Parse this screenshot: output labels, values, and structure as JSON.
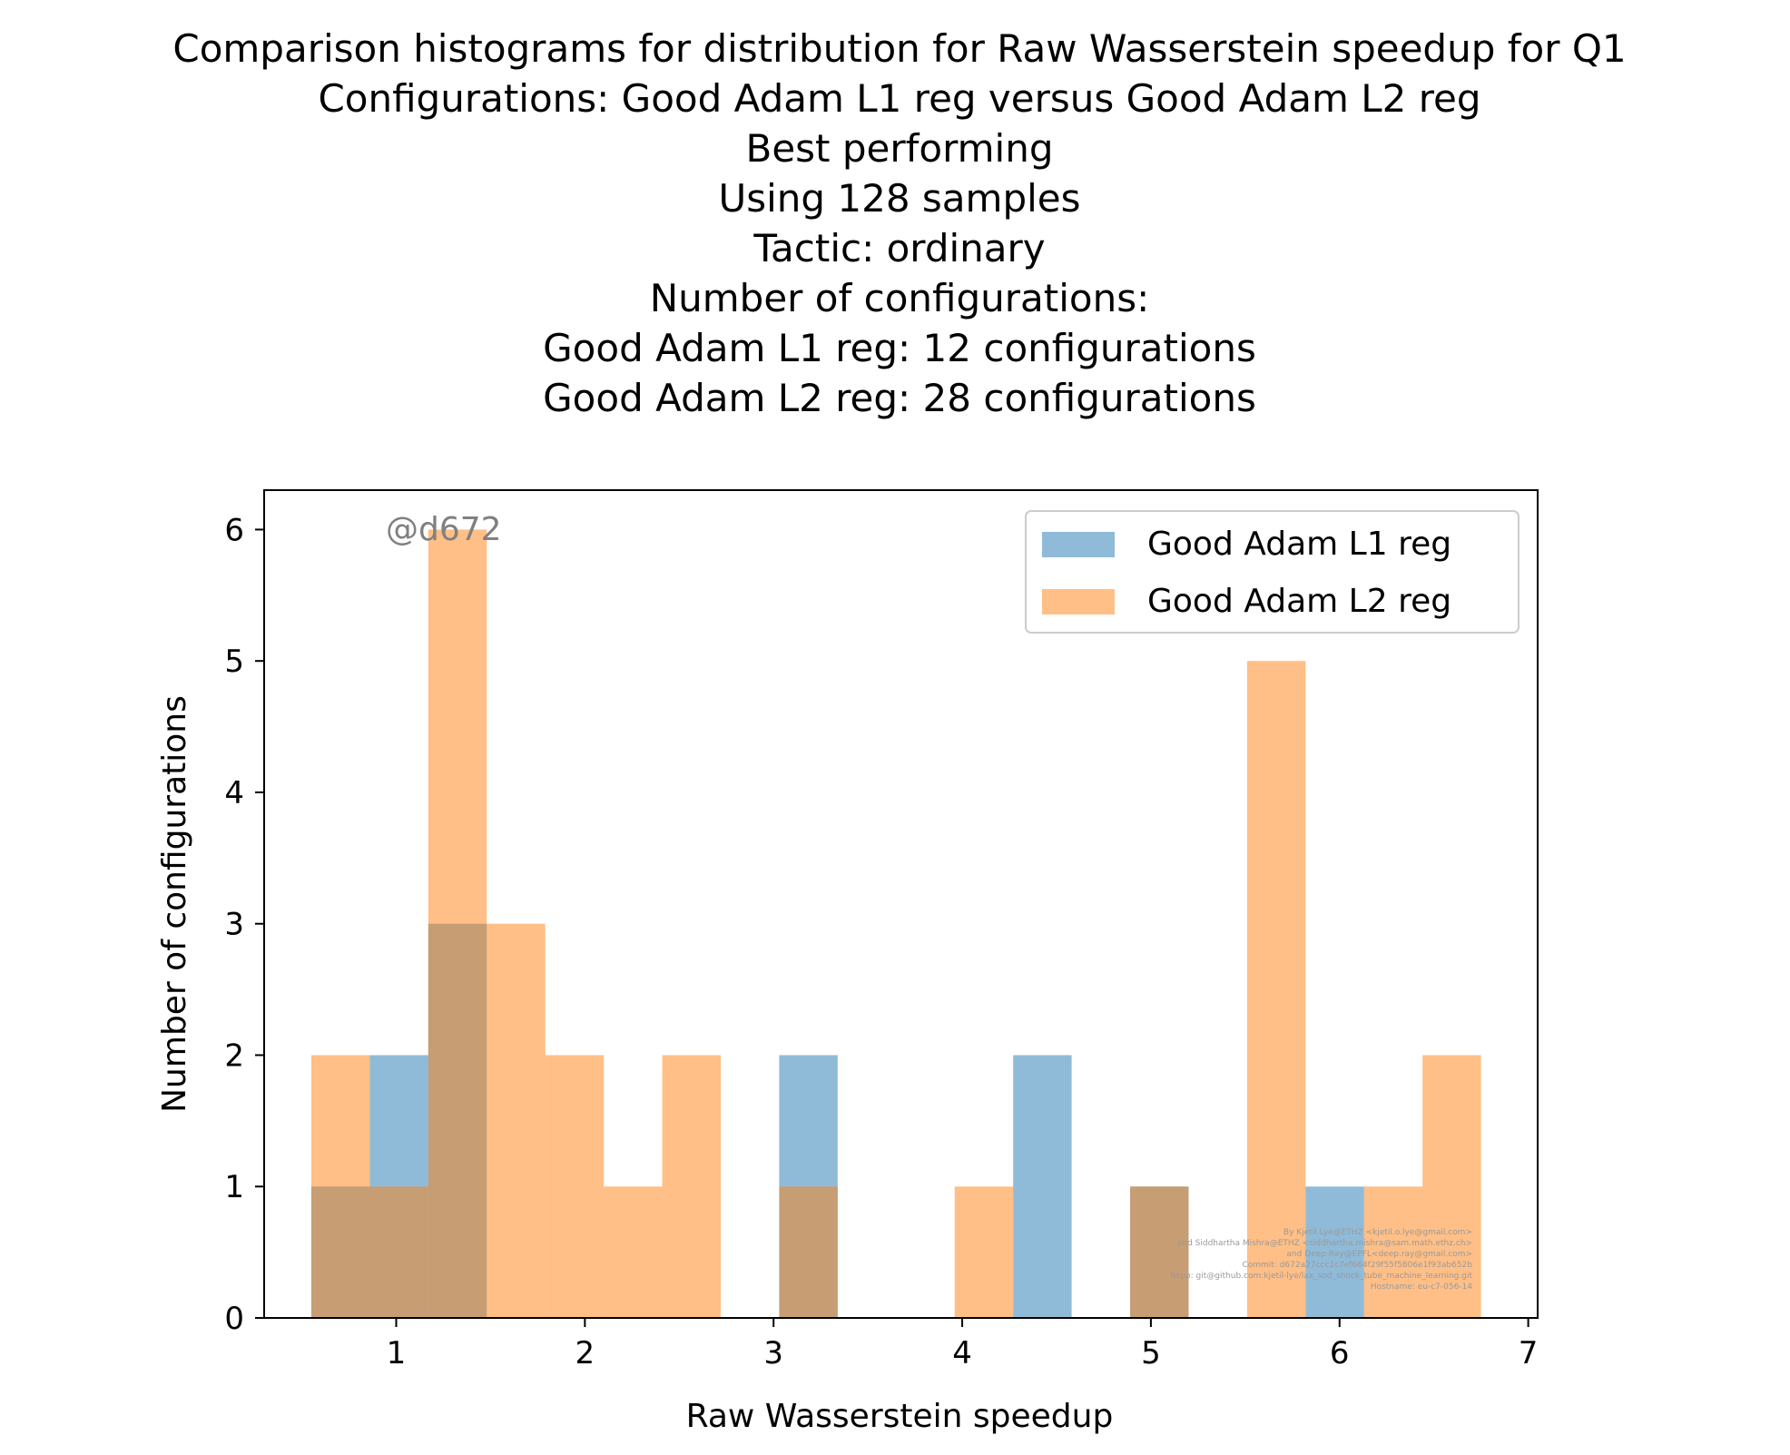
{
  "chart_data": {
    "type": "bar",
    "title_lines": [
      "Comparison histograms for distribution for Raw Wasserstein speedup for Q1",
      "Configurations: Good Adam L1 reg versus Good Adam L2 reg",
      "Best performing",
      "Using 128 samples",
      "Tactic: ordinary",
      "Number of configurations:",
      "Good Adam L1 reg: 12 configurations",
      "Good Adam L2 reg: 28 configurations"
    ],
    "xlabel": "Raw Wasserstein speedup",
    "ylabel": "Number of configurations",
    "xlim": [
      0.3,
      7.05
    ],
    "ylim": [
      0,
      6.3
    ],
    "x_ticks": [
      "1",
      "2",
      "3",
      "4",
      "5",
      "6",
      "7"
    ],
    "y_ticks": [
      "0",
      "1",
      "2",
      "3",
      "4",
      "5",
      "6"
    ],
    "bin_edges": [
      0.55,
      0.86,
      1.17,
      1.48,
      1.79,
      2.1,
      2.41,
      2.72,
      3.03,
      3.34,
      3.65,
      3.96,
      4.27,
      4.58,
      4.89,
      5.2,
      5.51,
      5.82,
      6.13,
      6.44,
      6.75
    ],
    "series": [
      {
        "name": "Good Adam L1 reg",
        "color": "#1f77b4",
        "values": [
          1,
          2,
          3,
          0,
          0,
          0,
          0,
          0,
          2,
          0,
          0,
          0,
          2,
          0,
          1,
          0,
          0,
          1,
          0,
          0
        ]
      },
      {
        "name": "Good Adam L2 reg",
        "color": "#ff7f0e",
        "values": [
          2,
          1,
          6,
          3,
          2,
          1,
          2,
          0,
          1,
          0,
          0,
          1,
          0,
          0,
          1,
          0,
          5,
          0,
          1,
          2
        ]
      }
    ],
    "alpha": 0.5,
    "grid": false,
    "legend_position": "top-right"
  },
  "watermark": "@d672",
  "credits": [
    "By Kjetil Lye@ETHZ <kjetil.o.lye@gmail.com>",
    "and Siddhartha Mishra@ETHZ <siddhartha.mishra@sam.math.ethz.ch>",
    "and Deep Ray@EPFL<deep.ray@gmail.com>",
    "Commit: d672a27ccc1c7ef664f29f55f5806e1f93ab652b",
    "Repo: git@github.com:kjetil-lye/lax_sod_shock_tube_machine_learning.git",
    "Hostname: eu-c7-056-14"
  ]
}
